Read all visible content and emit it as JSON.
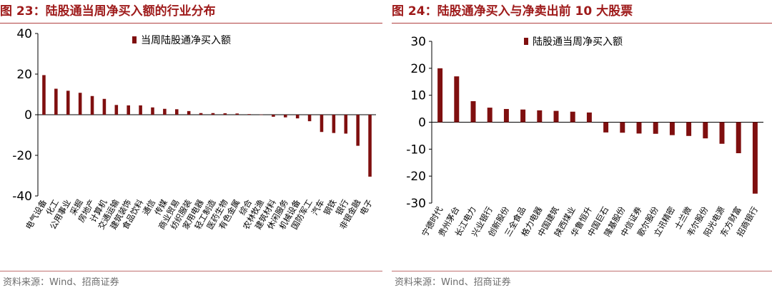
{
  "figures": [
    {
      "title": "图 23：陆股通当周净买入额的行业分布",
      "source": "资料来源：Wind、招商证券"
    },
    {
      "title": "图 24：陆股通净买入与净卖出前 10 大股票",
      "source": "资料来源：Wind、招商证券"
    }
  ],
  "colors": {
    "bar": "#7f0f0f",
    "title": "#9e1a1a",
    "axis": "#000000"
  },
  "chart_data": [
    {
      "type": "bar",
      "title": "",
      "xlabel": "",
      "ylabel": "",
      "ylim": [
        -40,
        40
      ],
      "yticks": [
        -40,
        -20,
        0,
        20,
        40
      ],
      "grid": false,
      "legend": "top-center",
      "categories": [
        "电气设备",
        "化工",
        "公用事业",
        "采掘",
        "房地产",
        "计算机",
        "交通运输",
        "建筑装饰",
        "食品饮料",
        "通信",
        "传媒",
        "商业贸易",
        "纺织服装",
        "家用电器",
        "轻工制造",
        "医药生物",
        "有色金属",
        "综合",
        "农林牧渔",
        "建筑材料",
        "休闲服务",
        "机械设备",
        "国防军工",
        "汽车",
        "钢铁",
        "银行",
        "非银金融",
        "电子"
      ],
      "series": [
        {
          "name": "当周陆股通净买入额",
          "values": [
            19.5,
            12.8,
            11.8,
            10.8,
            9.2,
            7.8,
            4.8,
            4.6,
            4.6,
            3.6,
            2.9,
            2.7,
            1.8,
            0.8,
            0.8,
            0.7,
            0.6,
            0.3,
            0.1,
            -1.0,
            -1.3,
            -1.8,
            -3.2,
            -8.5,
            -9.0,
            -9.3,
            -15.3,
            -30.5
          ]
        }
      ]
    },
    {
      "type": "bar",
      "title": "",
      "xlabel": "",
      "ylabel": "",
      "ylim": [
        -30,
        30
      ],
      "yticks": [
        -30,
        -20,
        -10,
        0,
        10,
        20,
        30
      ],
      "grid": false,
      "legend": "top-center",
      "categories": [
        "宁德时代",
        "贵州茅台",
        "长江电力",
        "兴业银行",
        "创新股份",
        "三全食品",
        "格力电器",
        "中国建筑",
        "陕西煤业",
        "华鲁恒升",
        "中国巨石",
        "隆基股份",
        "中信证券",
        "歌尔股份",
        "立讯精密",
        "士兰微",
        "韦尔股份",
        "阳光电源",
        "东方财富",
        "招商银行"
      ],
      "series": [
        {
          "name": "陆股通当周净买入额",
          "values": [
            20.0,
            17.0,
            7.8,
            5.4,
            4.9,
            4.7,
            4.4,
            4.2,
            3.9,
            3.6,
            -3.8,
            -3.9,
            -4.2,
            -4.3,
            -4.8,
            -5.1,
            -6.0,
            -8.0,
            -11.5,
            -26.5
          ]
        }
      ]
    }
  ]
}
